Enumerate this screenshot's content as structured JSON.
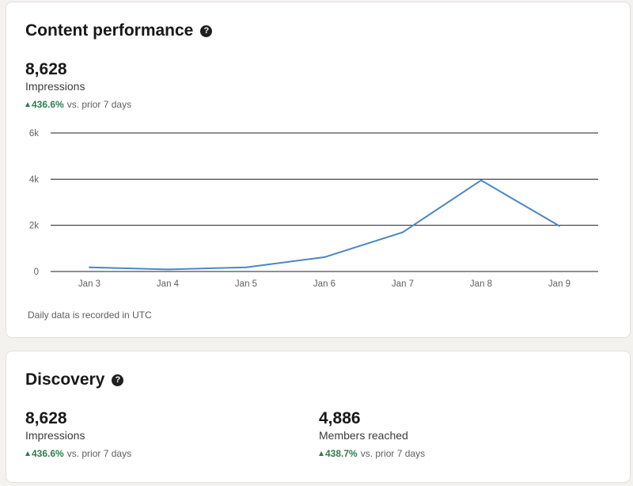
{
  "content_performance": {
    "title": "Content performance",
    "help_icon": "?",
    "impressions_value": "8,628",
    "impressions_label": "Impressions",
    "delta_pct": "436.6%",
    "delta_text": "vs. prior 7 days",
    "footnote": "Daily data is recorded in UTC"
  },
  "discovery": {
    "title": "Discovery",
    "help_icon": "?",
    "impressions_value": "8,628",
    "impressions_label": "Impressions",
    "impressions_delta_pct": "436.6%",
    "impressions_delta_text": "vs. prior 7 days",
    "members_value": "4,886",
    "members_label": "Members reached",
    "members_delta_pct": "438.7%",
    "members_delta_text": "vs. prior 7 days"
  },
  "colors": {
    "line": "#4a86c5",
    "grid": "#1f1f1f",
    "positive": "#2e7d4f"
  },
  "chart_data": {
    "type": "line",
    "title": "",
    "xlabel": "",
    "ylabel": "",
    "categories": [
      "Jan 3",
      "Jan 4",
      "Jan 5",
      "Jan 6",
      "Jan 7",
      "Jan 8",
      "Jan 9"
    ],
    "series": [
      {
        "name": "Impressions",
        "values": [
          180,
          90,
          180,
          620,
          1700,
          3950,
          1970
        ]
      }
    ],
    "ylim": [
      0,
      6000
    ],
    "yticks": [
      0,
      2000,
      4000,
      6000
    ],
    "ytick_labels": [
      "0",
      "2k",
      "4k",
      "6k"
    ],
    "grid": true
  }
}
